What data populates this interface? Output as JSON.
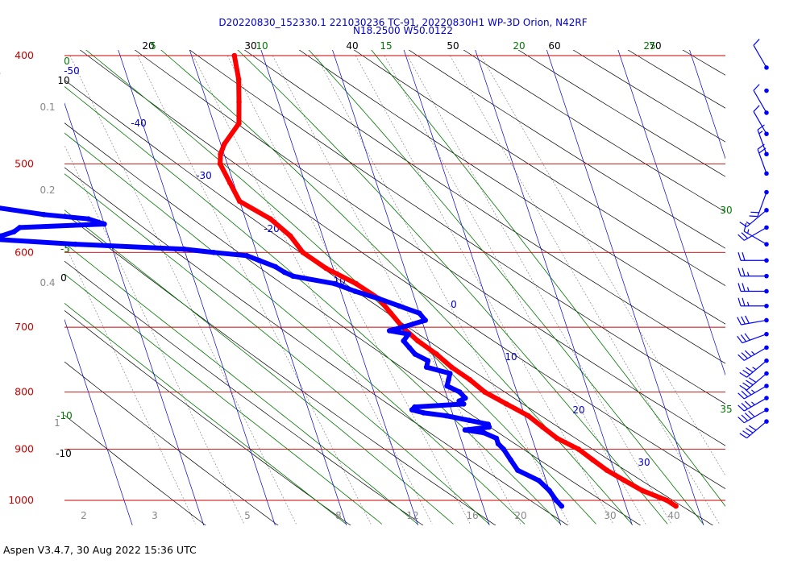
{
  "title_line1": "D20220830_152330.1 221030236 TC-91, 20220830H1 WP-3D Orion, N42RF",
  "title_line2": "N18.2500 W50.0122",
  "footer": "Aspen V3.4.7, 30 Aug 2022  15:36 UTC",
  "colors": {
    "isobar": "#cc0000",
    "temperature": "#ff0000",
    "dewpoint": "#0000ff",
    "isotherm": "#0000cc",
    "dry_adiabat": "#000000",
    "moist_adiabat": "#007700",
    "mixing_ratio": "#888888",
    "background": "#ffffff"
  },
  "chart_data": {
    "type": "skew-t",
    "pressure_levels": [
      "400",
      "500",
      "600",
      "700",
      "800",
      "900",
      "1000"
    ],
    "isotherm_labels": [
      "-50",
      "-40",
      "-30",
      "-20",
      "-10",
      "0",
      "10",
      "20",
      "30"
    ],
    "top_labels_black": [
      "20",
      "30",
      "40",
      "50",
      "60",
      "70"
    ],
    "top_labels_green": [
      "5",
      "10",
      "15",
      "20",
      "25"
    ],
    "left_labels_black": [
      "10",
      "0",
      "-10"
    ],
    "left_labels_gray": [
      "0.1",
      "0.2",
      "0.4",
      "1"
    ],
    "left_labels_green": [
      "0",
      "-5",
      "-10"
    ],
    "right_labels_green": [
      "30",
      "35"
    ],
    "bottom_labels_gray": [
      "2",
      "3",
      "5",
      "8",
      "12",
      "16",
      "20",
      "30",
      "40"
    ],
    "temperature": {
      "name": "Temperature",
      "points": [
        [
          400,
          -14.0
        ],
        [
          420,
          -14.5
        ],
        [
          440,
          -15.5
        ],
        [
          460,
          -16.5
        ],
        [
          480,
          -19.5
        ],
        [
          490,
          -20.5
        ],
        [
          500,
          -21.0
        ],
        [
          520,
          -20.5
        ],
        [
          540,
          -20.0
        ],
        [
          560,
          -16.5
        ],
        [
          580,
          -14.5
        ],
        [
          600,
          -13.5
        ],
        [
          620,
          -11.0
        ],
        [
          640,
          -7.5
        ],
        [
          660,
          -5.0
        ],
        [
          680,
          -4.0
        ],
        [
          700,
          -3.0
        ],
        [
          720,
          -1.5
        ],
        [
          740,
          0.5
        ],
        [
          760,
          2.0
        ],
        [
          780,
          4.0
        ],
        [
          800,
          5.5
        ],
        [
          820,
          8.0
        ],
        [
          840,
          10.5
        ],
        [
          860,
          12.0
        ],
        [
          880,
          13.5
        ],
        [
          900,
          16.0
        ],
        [
          920,
          17.5
        ],
        [
          940,
          19.0
        ],
        [
          960,
          21.0
        ],
        [
          980,
          23.0
        ],
        [
          1000,
          26.0
        ],
        [
          1012,
          27.0
        ]
      ]
    },
    "dewpoint": {
      "name": "Dew point",
      "points": [
        [
          400,
          -55.5
        ],
        [
          405,
          -55.0
        ],
        [
          410,
          -54.0
        ],
        [
          415,
          -48.0
        ],
        [
          420,
          -49.0
        ],
        [
          425,
          -56.0
        ],
        [
          430,
          -57.0
        ],
        [
          435,
          -55.5
        ],
        [
          440,
          -59.0
        ],
        [
          445,
          -65.0
        ],
        [
          448,
          -67.0
        ],
        [
          452,
          -64.0
        ],
        [
          458,
          -64.0
        ],
        [
          465,
          -68.0
        ],
        [
          470,
          -71.0
        ],
        [
          476,
          -73.0
        ],
        [
          480,
          -70.0
        ],
        [
          485,
          -63.0
        ],
        [
          490,
          -58.0
        ],
        [
          500,
          -58.5
        ],
        [
          508,
          -59.0
        ],
        [
          515,
          -59.5
        ],
        [
          520,
          -59.0
        ],
        [
          530,
          -58.5
        ],
        [
          538,
          -56.5
        ],
        [
          545,
          -56.0
        ],
        [
          555,
          -48.0
        ],
        [
          560,
          -42.0
        ],
        [
          566,
          -40.0
        ],
        [
          570,
          -52.0
        ],
        [
          575,
          -53.0
        ],
        [
          580,
          -55.0
        ],
        [
          584,
          -56.0
        ],
        [
          590,
          -45.0
        ],
        [
          596,
          -30.0
        ],
        [
          600,
          -26.0
        ],
        [
          604,
          -21.5
        ],
        [
          610,
          -20.0
        ],
        [
          618,
          -18.0
        ],
        [
          625,
          -17.0
        ],
        [
          630,
          -16.0
        ],
        [
          640,
          -10.5
        ],
        [
          650,
          -8.0
        ],
        [
          660,
          -5.0
        ],
        [
          670,
          -2.5
        ],
        [
          680,
          0.0
        ],
        [
          690,
          0.5
        ],
        [
          700,
          -3.0
        ],
        [
          705,
          -5.0
        ],
        [
          710,
          -2.5
        ],
        [
          720,
          -3.5
        ],
        [
          730,
          -3.0
        ],
        [
          740,
          -2.5
        ],
        [
          750,
          -1.0
        ],
        [
          760,
          -1.5
        ],
        [
          770,
          1.5
        ],
        [
          780,
          1.0
        ],
        [
          790,
          0.5
        ],
        [
          800,
          2.0
        ],
        [
          810,
          2.5
        ],
        [
          815,
          1.5
        ],
        [
          820,
          2.0
        ],
        [
          825,
          -5.0
        ],
        [
          830,
          -5.5
        ],
        [
          835,
          -4.0
        ],
        [
          840,
          -1.0
        ],
        [
          848,
          2.0
        ],
        [
          855,
          4.5
        ],
        [
          860,
          4.5
        ],
        [
          865,
          1.0
        ],
        [
          870,
          3.5
        ],
        [
          880,
          5.0
        ],
        [
          890,
          5.0
        ],
        [
          900,
          5.5
        ],
        [
          920,
          6.0
        ],
        [
          940,
          6.5
        ],
        [
          960,
          9.0
        ],
        [
          980,
          10.0
        ],
        [
          1000,
          10.5
        ],
        [
          1012,
          11.0
        ]
      ]
    },
    "wind_barbs_knots": [
      {
        "p": 410,
        "dir": 330,
        "spd": 10
      },
      {
        "p": 430,
        "dir": 0,
        "spd": 0
      },
      {
        "p": 450,
        "dir": 330,
        "spd": 10
      },
      {
        "p": 470,
        "dir": 330,
        "spd": 10
      },
      {
        "p": 490,
        "dir": 340,
        "spd": 15
      },
      {
        "p": 510,
        "dir": 340,
        "spd": 20
      },
      {
        "p": 530,
        "dir": 200,
        "spd": 20
      },
      {
        "p": 550,
        "dir": 230,
        "spd": 15
      },
      {
        "p": 570,
        "dir": 240,
        "spd": 20
      },
      {
        "p": 590,
        "dir": 300,
        "spd": 15
      },
      {
        "p": 610,
        "dir": 270,
        "spd": 20
      },
      {
        "p": 630,
        "dir": 270,
        "spd": 25
      },
      {
        "p": 650,
        "dir": 270,
        "spd": 25
      },
      {
        "p": 670,
        "dir": 270,
        "spd": 25
      },
      {
        "p": 690,
        "dir": 260,
        "spd": 30
      },
      {
        "p": 710,
        "dir": 250,
        "spd": 30
      },
      {
        "p": 730,
        "dir": 240,
        "spd": 35
      },
      {
        "p": 750,
        "dir": 230,
        "spd": 35
      },
      {
        "p": 770,
        "dir": 230,
        "spd": 40
      },
      {
        "p": 790,
        "dir": 240,
        "spd": 35
      },
      {
        "p": 810,
        "dir": 240,
        "spd": 35
      },
      {
        "p": 830,
        "dir": 240,
        "spd": 40
      },
      {
        "p": 850,
        "dir": 230,
        "spd": 40
      }
    ]
  }
}
